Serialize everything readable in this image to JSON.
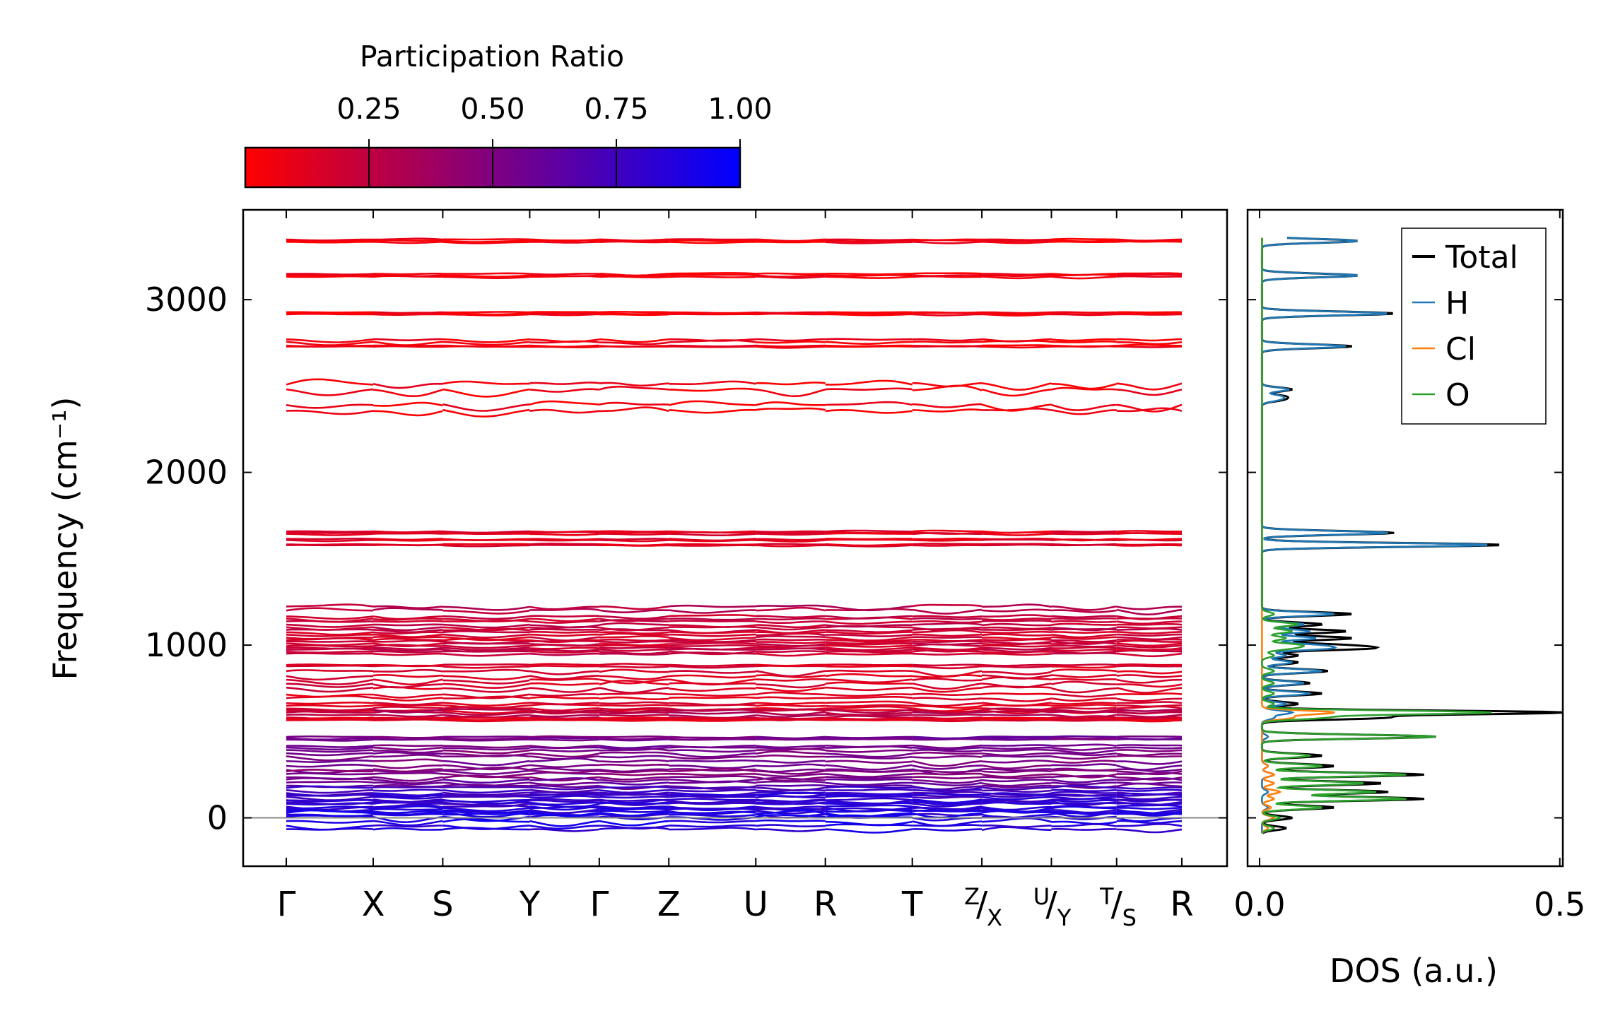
{
  "colorbar": {
    "title": "Participation Ratio",
    "ticks": [
      "0.25",
      "0.50",
      "0.75",
      "1.00"
    ],
    "tick_values": [
      0.25,
      0.5,
      0.75,
      1.0
    ],
    "range": [
      0.0,
      1.0
    ],
    "color_low": "#ff0000",
    "color_high": "#0000ff"
  },
  "chart_data": [
    {
      "type": "line",
      "name": "phonon-band-structure",
      "ylabel": "Frequency (cm⁻¹)",
      "ylim": [
        -280,
        3520
      ],
      "yticks": [
        0,
        1000,
        2000,
        3000
      ],
      "xlabels": [
        "Γ",
        "X",
        "S",
        "Y",
        "Γ",
        "Z",
        "U",
        "R",
        "T",
        "Z/X",
        "U/Y",
        "T/S",
        "R"
      ],
      "label_display": [
        {
          "main": "Γ"
        },
        {
          "main": "X"
        },
        {
          "main": "S"
        },
        {
          "main": "Y"
        },
        {
          "main": "Γ"
        },
        {
          "main": "Z"
        },
        {
          "main": "U"
        },
        {
          "main": "R"
        },
        {
          "main": "T"
        },
        {
          "sup": "Z",
          "sub": "X"
        },
        {
          "sup": "U",
          "sub": "Y"
        },
        {
          "sup": "T",
          "sub": "S"
        },
        {
          "main": "R"
        }
      ],
      "xpos": [
        0,
        1.0,
        1.8,
        2.8,
        3.6,
        4.4,
        5.4,
        6.2,
        7.2,
        8.0,
        8.8,
        9.55,
        10.3
      ],
      "color_by": "participation_ratio",
      "zero_line": 0,
      "bands": [
        {
          "f": 3340,
          "d": 12,
          "pr": 0.04,
          "n": 3
        },
        {
          "f": 3140,
          "d": 14,
          "pr": 0.05,
          "n": 3
        },
        {
          "f": 2920,
          "d": 10,
          "pr": 0.05,
          "n": 3
        },
        {
          "f": 2760,
          "d": 25,
          "pr": 0.06,
          "n": 2
        },
        {
          "f": 2730,
          "d": 10,
          "pr": 0.06,
          "n": 2
        },
        {
          "f": 2490,
          "d": 60,
          "pr": 0.05,
          "n": 2
        },
        {
          "f": 2370,
          "d": 55,
          "pr": 0.05,
          "n": 2
        },
        {
          "f": 1650,
          "d": 12,
          "pr": 0.12,
          "n": 3
        },
        {
          "f": 1610,
          "d": 12,
          "pr": 0.12,
          "n": 2
        },
        {
          "f": 1580,
          "d": 10,
          "pr": 0.12,
          "n": 2
        },
        {
          "f": 1210,
          "d": 35,
          "pr": 0.28,
          "n": 2
        },
        {
          "f": 1150,
          "d": 25,
          "pr": 0.22,
          "n": 3
        },
        {
          "f": 1100,
          "d": 25,
          "pr": 0.24,
          "n": 3
        },
        {
          "f": 1050,
          "d": 25,
          "pr": 0.18,
          "n": 4
        },
        {
          "f": 1000,
          "d": 20,
          "pr": 0.2,
          "n": 4
        },
        {
          "f": 960,
          "d": 20,
          "pr": 0.22,
          "n": 3
        },
        {
          "f": 880,
          "d": 15,
          "pr": 0.14,
          "n": 2
        },
        {
          "f": 820,
          "d": 40,
          "pr": 0.14,
          "n": 3
        },
        {
          "f": 760,
          "d": 40,
          "pr": 0.15,
          "n": 2
        },
        {
          "f": 700,
          "d": 35,
          "pr": 0.12,
          "n": 2
        },
        {
          "f": 640,
          "d": 25,
          "pr": 0.14,
          "n": 4
        },
        {
          "f": 600,
          "d": 25,
          "pr": 0.28,
          "n": 4
        },
        {
          "f": 570,
          "d": 10,
          "pr": 0.12,
          "n": 3
        },
        {
          "f": 460,
          "d": 12,
          "pr": 0.55,
          "n": 3
        },
        {
          "f": 410,
          "d": 20,
          "pr": 0.55,
          "n": 2
        },
        {
          "f": 370,
          "d": 30,
          "pr": 0.52,
          "n": 3
        },
        {
          "f": 300,
          "d": 40,
          "pr": 0.52,
          "n": 3
        },
        {
          "f": 250,
          "d": 30,
          "pr": 0.5,
          "n": 3
        },
        {
          "f": 200,
          "d": 30,
          "pr": 0.6,
          "n": 3
        },
        {
          "f": 150,
          "d": 25,
          "pr": 0.75,
          "n": 4
        },
        {
          "f": 110,
          "d": 25,
          "pr": 0.8,
          "n": 4
        },
        {
          "f": 70,
          "d": 30,
          "pr": 0.82,
          "n": 4
        },
        {
          "f": 35,
          "d": 30,
          "pr": 0.85,
          "n": 3
        },
        {
          "f": 0,
          "d": 40,
          "pr": 0.9,
          "n": 3
        },
        {
          "f": -60,
          "d": 35,
          "pr": 0.85,
          "n": 2
        }
      ]
    },
    {
      "type": "line",
      "name": "density-of-states",
      "xlabel": "DOS (a.u.)",
      "xlim": [
        -0.02,
        0.505
      ],
      "xticks": [
        0.0,
        0.5
      ],
      "xtick_labels": [
        "0.0",
        "0.5"
      ],
      "ylim": [
        -280,
        3520
      ],
      "legend_position": "top-right",
      "series": [
        {
          "name": "Total",
          "color": "#000000",
          "peaks": [
            [
              3340,
              0.16
            ],
            [
              3140,
              0.16
            ],
            [
              2920,
              0.22
            ],
            [
              2730,
              0.15
            ],
            [
              2480,
              0.05
            ],
            [
              2440,
              0.035
            ],
            [
              2420,
              0.03
            ],
            [
              1650,
              0.22
            ],
            [
              1580,
              0.4
            ],
            [
              1180,
              0.15
            ],
            [
              1120,
              0.1
            ],
            [
              1080,
              0.14
            ],
            [
              1040,
              0.15
            ],
            [
              1000,
              0.12
            ],
            [
              980,
              0.16
            ],
            [
              940,
              0.06
            ],
            [
              900,
              0.06
            ],
            [
              850,
              0.11
            ],
            [
              780,
              0.08
            ],
            [
              720,
              0.1
            ],
            [
              660,
              0.06
            ],
            [
              610,
              0.5
            ],
            [
              580,
              0.2
            ],
            [
              470,
              0.29
            ],
            [
              360,
              0.1
            ],
            [
              300,
              0.12
            ],
            [
              250,
              0.27
            ],
            [
              200,
              0.2
            ],
            [
              150,
              0.21
            ],
            [
              110,
              0.27
            ],
            [
              60,
              0.12
            ],
            [
              0,
              0.05
            ],
            [
              -60,
              0.04
            ]
          ]
        },
        {
          "name": "H",
          "color": "#1f77b4",
          "peaks": [
            [
              3340,
              0.16
            ],
            [
              3140,
              0.16
            ],
            [
              2920,
              0.21
            ],
            [
              2730,
              0.14
            ],
            [
              2480,
              0.045
            ],
            [
              2440,
              0.03
            ],
            [
              2420,
              0.025
            ],
            [
              1650,
              0.21
            ],
            [
              1580,
              0.38
            ],
            [
              1180,
              0.12
            ],
            [
              1120,
              0.07
            ],
            [
              1080,
              0.08
            ],
            [
              1040,
              0.09
            ],
            [
              1000,
              0.08
            ],
            [
              980,
              0.1
            ],
            [
              940,
              0.04
            ],
            [
              900,
              0.05
            ],
            [
              850,
              0.1
            ],
            [
              780,
              0.07
            ],
            [
              720,
              0.08
            ],
            [
              660,
              0.04
            ],
            [
              610,
              0.05
            ],
            [
              580,
              0.02
            ],
            [
              470,
              0.01
            ],
            [
              300,
              0.01
            ],
            [
              250,
              0.02
            ],
            [
              150,
              0.01
            ],
            [
              60,
              0.01
            ],
            [
              0,
              0.02
            ]
          ]
        },
        {
          "name": "Cl",
          "color": "#ff7f0e",
          "peaks": [
            [
              610,
              0.12
            ],
            [
              580,
              0.05
            ],
            [
              300,
              0.01
            ],
            [
              250,
              0.02
            ],
            [
              200,
              0.02
            ],
            [
              150,
              0.03
            ],
            [
              110,
              0.02
            ],
            [
              60,
              0.015
            ],
            [
              0,
              0.02
            ],
            [
              -60,
              0.01
            ]
          ]
        },
        {
          "name": "O",
          "color": "#2ca02c",
          "peaks": [
            [
              1180,
              0.02
            ],
            [
              1120,
              0.06
            ],
            [
              1080,
              0.05
            ],
            [
              1040,
              0.04
            ],
            [
              1000,
              0.06
            ],
            [
              980,
              0.04
            ],
            [
              940,
              0.02
            ],
            [
              850,
              0.02
            ],
            [
              780,
              0.02
            ],
            [
              720,
              0.02
            ],
            [
              660,
              0.02
            ],
            [
              610,
              0.38
            ],
            [
              580,
              0.1
            ],
            [
              470,
              0.29
            ],
            [
              360,
              0.08
            ],
            [
              300,
              0.1
            ],
            [
              250,
              0.24
            ],
            [
              200,
              0.17
            ],
            [
              150,
              0.19
            ],
            [
              110,
              0.24
            ],
            [
              60,
              0.1
            ],
            [
              0,
              0.03
            ],
            [
              -60,
              0.02
            ]
          ]
        }
      ]
    }
  ]
}
